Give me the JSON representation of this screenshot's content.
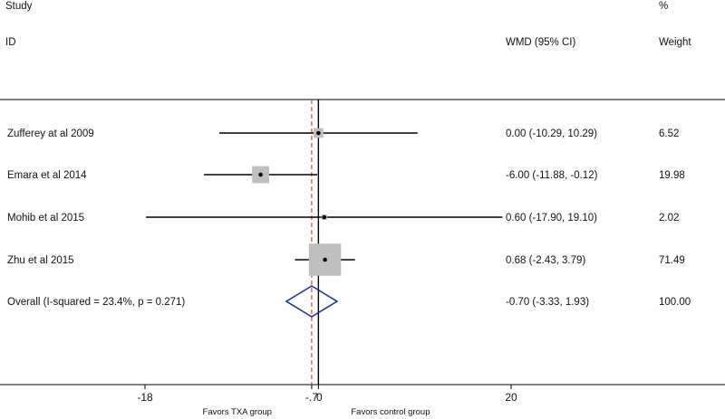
{
  "header": {
    "study_label": "Study",
    "id_label": "ID",
    "effect_label": "WMD (95% CI)",
    "percent_label": "%",
    "weight_label": "Weight"
  },
  "chart_data": {
    "type": "forest",
    "effect_measure": "WMD (95% CI)",
    "studies": [
      {
        "label": "Zufferey at al 2009",
        "estimate": 0.0,
        "lower": -10.29,
        "upper": 10.29,
        "ci_text": "0.00 (-10.29, 10.29)",
        "weight": 6.52,
        "weight_text": "6.52"
      },
      {
        "label": "Emara et al 2014",
        "estimate": -6.0,
        "lower": -11.88,
        "upper": -0.12,
        "ci_text": "-6.00 (-11.88, -0.12)",
        "weight": 19.98,
        "weight_text": "19.98"
      },
      {
        "label": "Mohib et al 2015",
        "estimate": 0.6,
        "lower": -17.9,
        "upper": 19.1,
        "ci_text": "0.60 (-17.90, 19.10)",
        "weight": 2.02,
        "weight_text": "2.02"
      },
      {
        "label": "Zhu et al 2015",
        "estimate": 0.68,
        "lower": -2.43,
        "upper": 3.79,
        "ci_text": "0.68 (-2.43, 3.79)",
        "weight": 71.49,
        "weight_text": "71.49"
      }
    ],
    "overall": {
      "label": "Overall  (I-squared = 23.4%, p = 0.271)",
      "estimate": -0.7,
      "lower": -3.33,
      "upper": 1.93,
      "ci_text": "-0.70 (-3.33, 1.93)",
      "weight": 100.0,
      "weight_text": "100.00"
    },
    "xaxis": {
      "ticks": [
        -18,
        -0.7,
        0,
        20
      ],
      "tick_labels": [
        "-18",
        "-.7",
        "0",
        "20"
      ],
      "range": [
        -18,
        20
      ]
    },
    "null_line": 0,
    "favors_left": "Favors TXA group",
    "favors_right": "Favors control group",
    "colors": {
      "box": "#bfbfbf",
      "diamond": "#1f2e9e",
      "overall_line": "#d9534f",
      "line": "#000000"
    }
  }
}
